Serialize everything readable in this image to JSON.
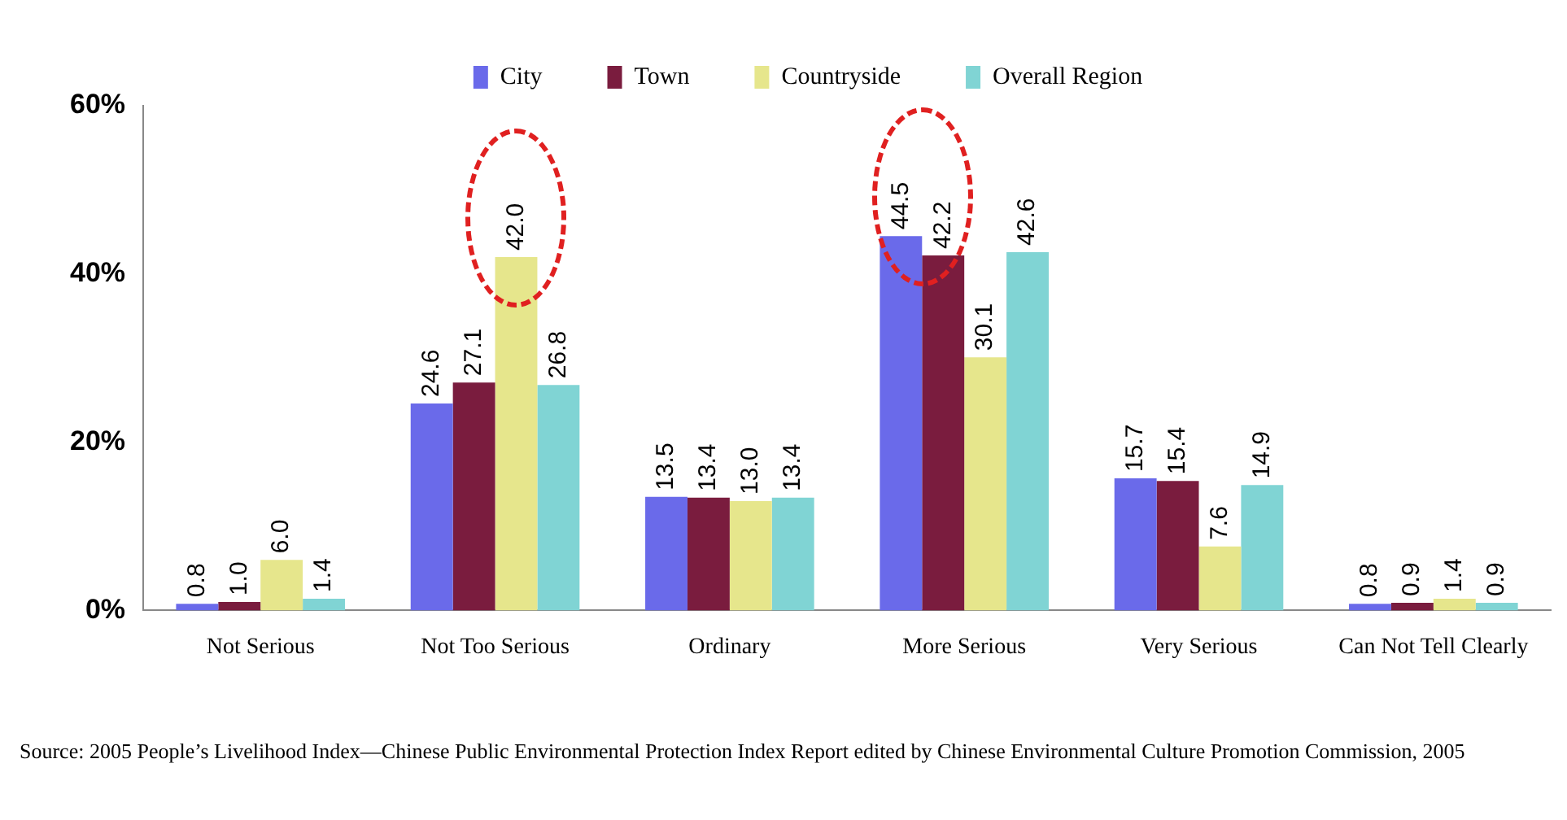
{
  "chart_data": {
    "type": "bar",
    "categories": [
      "Not Serious",
      "Not Too Serious",
      "Ordinary",
      "More Serious",
      "Very Serious",
      "Can Not Tell Clearly"
    ],
    "series": [
      {
        "name": "City",
        "color": "#6a6aea",
        "values": [
          0.8,
          24.6,
          13.5,
          44.5,
          15.7,
          0.8
        ],
        "value_labels": [
          "0.8",
          "24.6",
          "13.5",
          "44.5",
          "15.7",
          "0.8"
        ]
      },
      {
        "name": "Town",
        "color": "#7a1c3e",
        "values": [
          1.0,
          27.1,
          13.4,
          42.2,
          15.4,
          0.9
        ],
        "value_labels": [
          "1.0",
          "27.1",
          "13.4",
          "42.2",
          "15.4",
          "0.9"
        ]
      },
      {
        "name": "Countryside",
        "color": "#e6e68c",
        "values": [
          6.0,
          42.0,
          13.0,
          30.1,
          7.6,
          1.4
        ],
        "value_labels": [
          "6.0",
          "42.0",
          "13.0",
          "30.1",
          "7.6",
          "1.4"
        ]
      },
      {
        "name": "Overall Region",
        "color": "#80d4d4",
        "values": [
          1.4,
          26.8,
          13.4,
          42.6,
          14.9,
          0.9
        ],
        "value_labels": [
          "1.4",
          "26.8",
          "13.4",
          "42.6",
          "14.9",
          "0.9"
        ]
      }
    ],
    "ylim": [
      0,
      60
    ],
    "yticks": [
      {
        "value": 0,
        "label": "0%"
      },
      {
        "value": 20,
        "label": "20%"
      },
      {
        "value": 40,
        "label": "40%"
      },
      {
        "value": 60,
        "label": "60%"
      }
    ],
    "grid": false,
    "legend": "top",
    "annotations": [
      "Source:  2005 People’s Livelihood Index—Chinese Public Environmental Protection Index Report edited by Chinese Environmental Culture Promotion Commission, 2005"
    ]
  }
}
